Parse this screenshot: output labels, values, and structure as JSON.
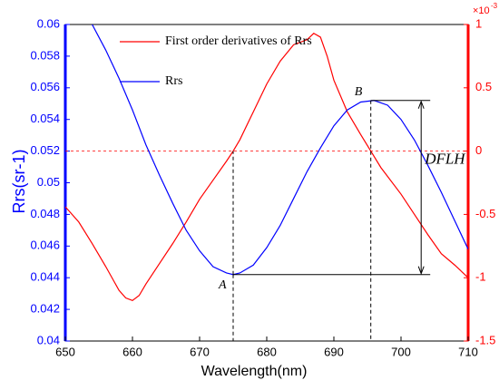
{
  "chart_data": {
    "type": "line",
    "xlabel": "Wavelength(nm)",
    "ylabel": "Rrs(sr-1)",
    "y2_scale_base": "×10",
    "y2_scale_exp": "-3",
    "xlim": [
      650,
      710
    ],
    "xticks": [
      650,
      660,
      670,
      680,
      690,
      700,
      710
    ],
    "ylim": [
      0.04,
      0.06
    ],
    "yticks": [
      0.04,
      0.042,
      0.044,
      0.046,
      0.048,
      0.05,
      0.052,
      0.054,
      0.056,
      0.058,
      0.06
    ],
    "y2lim": [
      -1.5,
      1
    ],
    "y2ticks": [
      -1.5,
      -1,
      -0.5,
      0,
      0.5,
      1
    ],
    "y2_zero_line": 0,
    "series": [
      {
        "name": "First order derivatives of Rrs",
        "color": "#ff0000",
        "axis": "y2",
        "x": [
          650,
          652,
          654,
          656,
          658,
          659,
          660,
          661,
          662,
          664,
          666,
          668,
          670,
          672,
          674,
          675,
          676,
          678,
          680,
          682,
          684,
          686,
          687,
          688,
          689,
          690,
          692,
          694,
          695.5,
          697,
          700,
          702,
          704,
          706,
          708,
          710
        ],
        "values": [
          -0.44,
          -0.56,
          -0.73,
          -0.91,
          -1.1,
          -1.16,
          -1.18,
          -1.14,
          -1.05,
          -0.89,
          -0.73,
          -0.56,
          -0.38,
          -0.23,
          -0.08,
          0,
          0.09,
          0.31,
          0.53,
          0.71,
          0.84,
          0.88,
          0.93,
          0.9,
          0.75,
          0.56,
          0.31,
          0.13,
          0,
          -0.13,
          -0.34,
          -0.5,
          -0.66,
          -0.81,
          -0.9,
          -1.0
        ]
      },
      {
        "name": "Rrs",
        "color": "#0000ff",
        "x": [
          654,
          656,
          658,
          660,
          662,
          664,
          666,
          668,
          670,
          672,
          674,
          675,
          676,
          678,
          680,
          682,
          684,
          686,
          688,
          690,
          692,
          694,
          696,
          698,
          700,
          702,
          704,
          706,
          708,
          710
        ],
        "values": [
          0.06,
          0.0584,
          0.0566,
          0.0546,
          0.0524,
          0.0505,
          0.0487,
          0.047,
          0.0457,
          0.0447,
          0.0443,
          0.0442,
          0.0443,
          0.0448,
          0.0459,
          0.0473,
          0.049,
          0.0507,
          0.0522,
          0.0536,
          0.0546,
          0.0551,
          0.0552,
          0.0549,
          0.054,
          0.0527,
          0.0511,
          0.0494,
          0.0476,
          0.0458
        ]
      }
    ],
    "annotations": [
      {
        "text": "A",
        "x": 675,
        "y": 0.0442
      },
      {
        "text": "B",
        "x": 695.5,
        "y": 0.0552
      }
    ],
    "dflh_label": "DFLH",
    "dflh_x": 703
  }
}
